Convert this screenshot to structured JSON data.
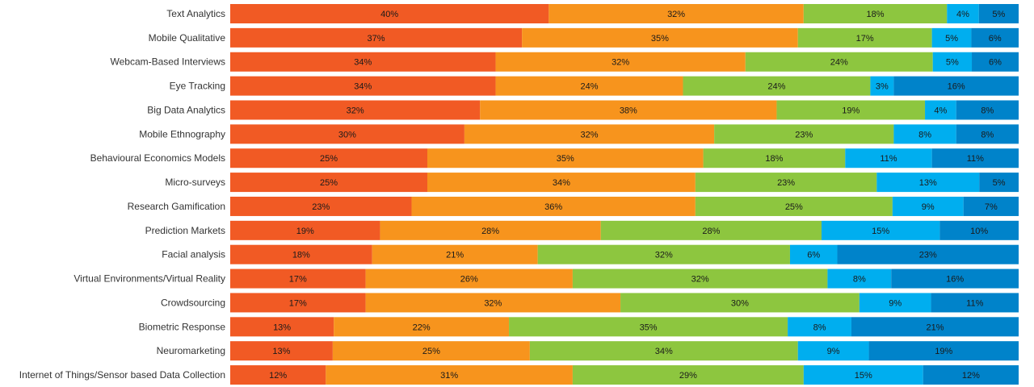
{
  "chart_data": {
    "type": "bar",
    "orientation": "horizontal",
    "stacked": true,
    "normalized_100": true,
    "grid": false,
    "legend": "none",
    "categories": [
      "Text Analytics",
      "Mobile Qualitative",
      "Webcam-Based Interviews",
      "Eye Tracking",
      "Big Data Analytics",
      "Mobile Ethnography",
      "Behavioural Economics Models",
      "Micro-surveys",
      "Research Gamification",
      "Prediction Markets",
      "Facial analysis",
      "Virtual Environments/Virtual Reality",
      "Crowdsourcing",
      "Biometric Response",
      "Neuromarketing",
      "Internet of Things/Sensor based Data Collection"
    ],
    "series": [
      {
        "color": "#f15a24",
        "values": [
          40,
          37,
          34,
          34,
          32,
          30,
          25,
          25,
          23,
          19,
          18,
          17,
          17,
          13,
          13,
          12
        ]
      },
      {
        "color": "#f7941d",
        "values": [
          32,
          35,
          32,
          24,
          38,
          32,
          35,
          34,
          36,
          28,
          21,
          26,
          32,
          22,
          25,
          31
        ]
      },
      {
        "color": "#8dc63f",
        "values": [
          18,
          17,
          24,
          24,
          19,
          23,
          18,
          23,
          25,
          28,
          32,
          32,
          30,
          35,
          34,
          29
        ]
      },
      {
        "color": "#00aeef",
        "values": [
          4,
          5,
          5,
          3,
          4,
          8,
          11,
          13,
          9,
          15,
          6,
          8,
          9,
          8,
          9,
          15
        ]
      },
      {
        "color": "#0083ca",
        "values": [
          5,
          6,
          6,
          16,
          8,
          8,
          11,
          5,
          7,
          10,
          23,
          16,
          11,
          21,
          19,
          12
        ]
      }
    ],
    "value_suffix": "%"
  }
}
